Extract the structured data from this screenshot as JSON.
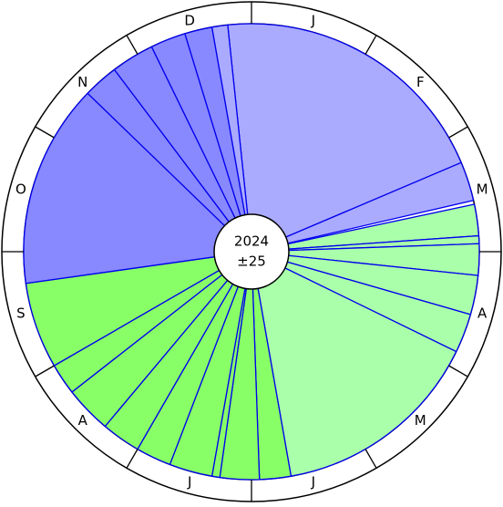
{
  "center": {
    "year": "2024",
    "range": "±25"
  },
  "months": [
    "J",
    "F",
    "M",
    "A",
    "M",
    "J",
    "J",
    "A",
    "S",
    "O",
    "N",
    "D"
  ],
  "wedges": [
    {
      "start": 354,
      "end": 427,
      "color": "#aaaaff"
    },
    {
      "start": 427,
      "end": 437,
      "color": "#aaaaff"
    },
    {
      "start": 78,
      "end": 86,
      "color": "#aaffaa"
    },
    {
      "start": 86,
      "end": 88,
      "color": "#aaffaa"
    },
    {
      "start": 88,
      "end": 96,
      "color": "#aaffaa"
    },
    {
      "start": 96,
      "end": 106,
      "color": "#aaffaa"
    },
    {
      "start": 106,
      "end": 116,
      "color": "#aaffaa"
    },
    {
      "start": 116,
      "end": 170,
      "color": "#aaffaa"
    },
    {
      "start": 170,
      "end": 178,
      "color": "#88ff66"
    },
    {
      "start": 178,
      "end": 188,
      "color": "#88ff66"
    },
    {
      "start": 188,
      "end": 190,
      "color": "#88ff66"
    },
    {
      "start": 190,
      "end": 201,
      "color": "#88ff66"
    },
    {
      "start": 201,
      "end": 210,
      "color": "#88ff66"
    },
    {
      "start": 210,
      "end": 220,
      "color": "#88ff66"
    },
    {
      "start": 220,
      "end": 232,
      "color": "#88ff66"
    },
    {
      "start": 232,
      "end": 240,
      "color": "#88ff66"
    },
    {
      "start": 240,
      "end": 262,
      "color": "#88ff66"
    },
    {
      "start": 262,
      "end": 314,
      "color": "#8888ff"
    },
    {
      "start": 314,
      "end": 323,
      "color": "#8888ff"
    },
    {
      "start": 323,
      "end": 334,
      "color": "#8888ff"
    },
    {
      "start": 334,
      "end": 343,
      "color": "#8888ff"
    },
    {
      "start": 343,
      "end": 350,
      "color": "#8888ff"
    },
    {
      "start": 350,
      "end": 354,
      "color": "#aaaaff"
    }
  ]
}
